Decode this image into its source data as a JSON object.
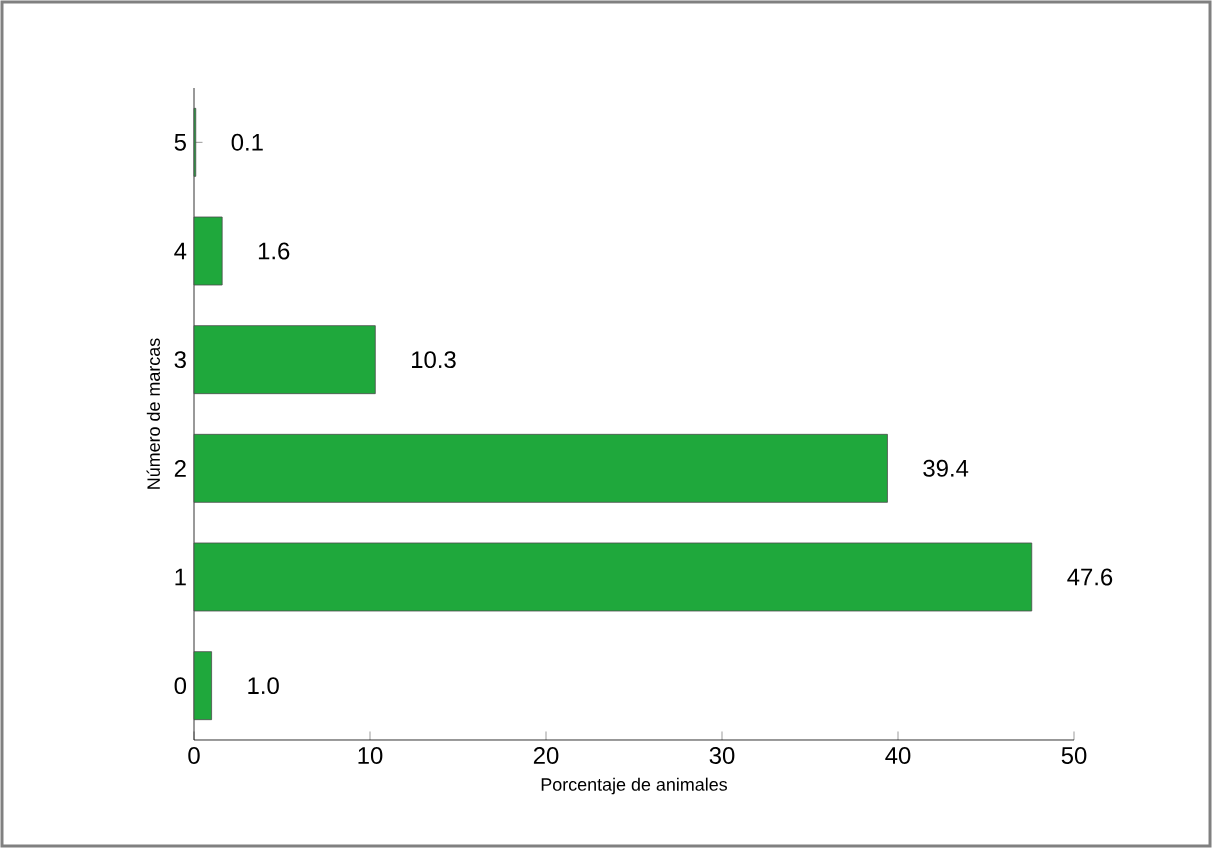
{
  "chart_data": {
    "type": "bar",
    "orientation": "horizontal",
    "xlabel": "Porcentaje de animales",
    "ylabel": "Número de marcas",
    "categories": [
      "5",
      "4",
      "3",
      "2",
      "1",
      "0"
    ],
    "values": [
      0.1,
      1.6,
      10.3,
      39.4,
      47.6,
      1.0
    ],
    "value_labels": [
      "0.1",
      "1.6",
      "10.3",
      "39.4",
      "47.6",
      "1.0"
    ],
    "color": "#1fa83c",
    "xlim": [
      0,
      50
    ],
    "xticks": [
      0,
      10,
      20,
      30,
      40,
      50
    ]
  }
}
